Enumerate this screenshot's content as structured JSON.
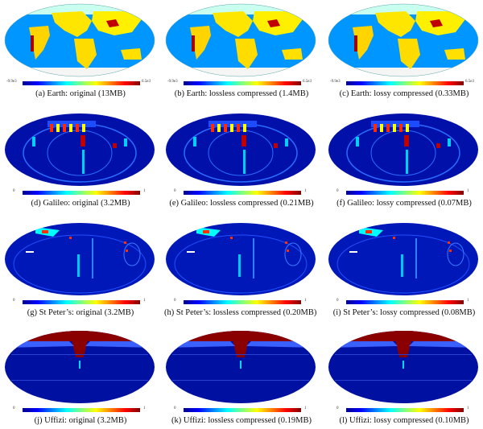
{
  "figure": {
    "colormap": [
      "#00008f",
      "#0000ff",
      "#0080ff",
      "#00ffff",
      "#80ff80",
      "#ffff00",
      "#ff8000",
      "#ff0000",
      "#800000"
    ],
    "rows": [
      {
        "name": "Earth",
        "panels": [
          {
            "caption": "(a) Earth: original (13MB)",
            "scale_min": "-9.9e3",
            "scale_max": "6.5e3"
          },
          {
            "caption": "(b) Earth: lossless compressed (1.4MB)",
            "scale_min": "-9.9e3",
            "scale_max": "6.5e3"
          },
          {
            "caption": "(c) Earth: lossy compressed (0.33MB)",
            "scale_min": "-9.9e3",
            "scale_max": "6.5e3"
          }
        ]
      },
      {
        "name": "Galileo",
        "panels": [
          {
            "caption": "(d) Galileo: original (3.2MB)",
            "scale_min": "0",
            "scale_max": "1"
          },
          {
            "caption": "(e) Galileo: lossless compressed (0.21MB)",
            "scale_min": "0",
            "scale_max": "1"
          },
          {
            "caption": "(f) Galileo: lossy compressed (0.07MB)",
            "scale_min": "0",
            "scale_max": "1"
          }
        ]
      },
      {
        "name": "St Peter's",
        "panels": [
          {
            "caption": "(g) St Peter’s: original (3.2MB)",
            "scale_min": "0",
            "scale_max": "1"
          },
          {
            "caption": "(h) St Peter’s: lossless compressed (0.20MB)",
            "scale_min": "0",
            "scale_max": "1"
          },
          {
            "caption": "(i) St Peter’s: lossy compressed (0.08MB)",
            "scale_min": "0",
            "scale_max": "1"
          }
        ]
      },
      {
        "name": "Uffizi",
        "panels": [
          {
            "caption": "(j) Uffizi: original (3.2MB)",
            "scale_min": "0",
            "scale_max": "1"
          },
          {
            "caption": "(k) Uffizi: lossless compressed (0.19MB)",
            "scale_min": "0",
            "scale_max": "1"
          },
          {
            "caption": "(l) Uffizi: lossy compressed (0.10MB)",
            "scale_min": "0",
            "scale_max": "1"
          }
        ]
      }
    ]
  }
}
